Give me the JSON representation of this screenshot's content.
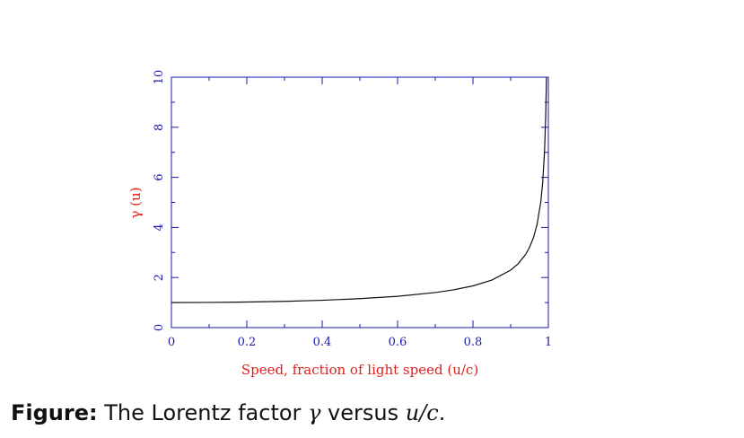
{
  "colors": {
    "frame": "#1a1aa6",
    "tick_label": "#1a1aa6",
    "axis_title": "#e0201e",
    "curve": "#111111"
  },
  "chart_data": {
    "type": "line",
    "xlabel": "Speed, fraction of light speed (u/c)",
    "ylabel": "γ (u)",
    "xlim": [
      0,
      1
    ],
    "ylim": [
      0,
      10
    ],
    "x_ticks": [
      "0",
      "0.2",
      "0.4",
      "0.6",
      "0.8",
      "1"
    ],
    "x_tick_values": [
      0,
      0.2,
      0.4,
      0.6,
      0.8,
      1
    ],
    "y_ticks": [
      "0",
      "2",
      "4",
      "6",
      "8",
      "10"
    ],
    "y_tick_values": [
      0,
      2,
      4,
      6,
      8,
      10
    ],
    "grid": false,
    "series": [
      {
        "function": "gamma(u) = 1 / sqrt(1 - u^2)",
        "x": [
          0,
          0.1,
          0.2,
          0.3,
          0.4,
          0.5,
          0.6,
          0.7,
          0.75,
          0.8,
          0.85,
          0.9,
          0.92,
          0.94,
          0.95,
          0.96,
          0.97,
          0.98,
          0.985,
          0.99,
          0.993,
          0.995
        ],
        "y": [
          1.0,
          1.005,
          1.021,
          1.048,
          1.091,
          1.155,
          1.25,
          1.4,
          1.512,
          1.667,
          1.898,
          2.294,
          2.552,
          2.931,
          3.203,
          3.571,
          4.113,
          5.025,
          5.795,
          7.089,
          8.476,
          10.013
        ]
      }
    ]
  },
  "caption": {
    "label": "Figure:",
    "text_before": "The Lorentz factor",
    "symbol_gamma": "γ",
    "text_middle": "versus",
    "symbol_ratio": "u/c",
    "text_after": "."
  }
}
